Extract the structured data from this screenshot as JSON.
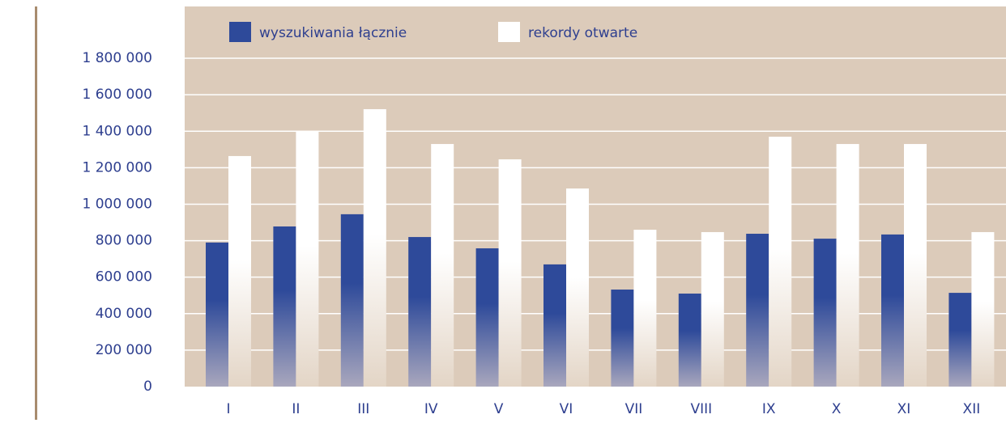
{
  "chart_data": {
    "type": "bar",
    "categories": [
      "I",
      "II",
      "III",
      "IV",
      "V",
      "VI",
      "VII",
      "VIII",
      "IX",
      "X",
      "XI",
      "XII"
    ],
    "series": [
      {
        "name": "wyszukiwania łącznie",
        "color": "#2e4a9a",
        "values": [
          790000,
          878000,
          945000,
          820000,
          758000,
          670000,
          532000,
          510000,
          838000,
          811000,
          834000,
          514000
        ]
      },
      {
        "name": "rekordy otwarte",
        "color": "#ffffff",
        "values": [
          1264000,
          1401000,
          1521000,
          1330000,
          1246000,
          1086000,
          860000,
          847000,
          1370000,
          1330000,
          1330000,
          847000
        ]
      }
    ],
    "ylim": [
      0,
      2084000
    ],
    "yticks": [
      0,
      {
        "value": 200000,
        "label": "200 000"
      },
      {
        "value": 400000,
        "label": "400 000"
      },
      {
        "value": 600000,
        "label": "600 000"
      },
      {
        "value": 800000,
        "label": "800 000"
      },
      {
        "value": 1000000,
        "label": "1 000 000"
      },
      {
        "value": 1200000,
        "label": "1 200 000"
      },
      {
        "value": 1400000,
        "label": "1 400 000"
      },
      {
        "value": 1600000,
        "label": "1 600 000"
      },
      {
        "value": 1800000,
        "label": "1 800 000"
      }
    ],
    "grid": true,
    "background": "#dccbba"
  }
}
